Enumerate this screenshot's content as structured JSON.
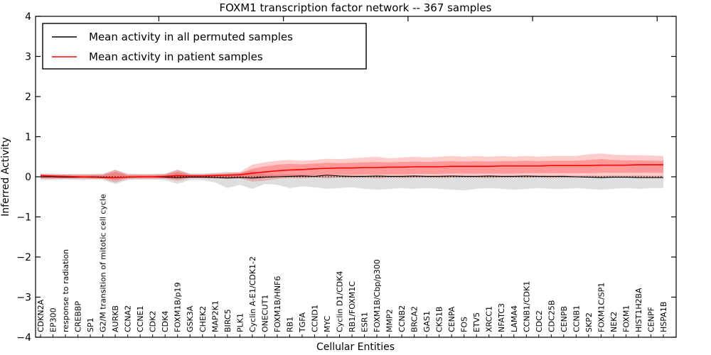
{
  "chart_data": {
    "type": "line",
    "title": "FOXM1 transcription factor network -- 367 samples",
    "xlabel": "Cellular Entities",
    "ylabel": "Inferred Activity",
    "ylim": [
      -4,
      4
    ],
    "ytick_values": [
      4,
      3,
      2,
      1,
      0,
      -1,
      -2,
      -3,
      -4
    ],
    "ytick_labels": [
      "4",
      "3",
      "2",
      "1",
      "0",
      "−1",
      "−2",
      "−3",
      "−4"
    ],
    "grid": false,
    "legend_position": "upper left",
    "legend": [
      {
        "label": "Mean activity in all permuted samples",
        "color": "#000000"
      },
      {
        "label": "Mean activity in patient samples",
        "color": "#ff0000"
      }
    ],
    "categories": [
      "CDKN2A",
      "EP300",
      "response to radiation",
      "CREBBP",
      "SP1",
      "G2/M transition of mitotic cell cycle",
      "AURKB",
      "CCNA2",
      "CCNE1",
      "CDK2",
      "CDK4",
      "FOXM1B/p19",
      "GSK3A",
      "CHEK2",
      "MAP2K1",
      "BIRC5",
      "PLK1",
      "Cyclin A-E1/CDK1-2",
      "ONECUT1",
      "FOXM1B/HNF6",
      "RB1",
      "TGFA",
      "CCND1",
      "MYC",
      "Cyclin D1/CDK4",
      "RB1/FOXM1C",
      "ESR1",
      "FOXM1B/Cbp/p300",
      "MMP2",
      "CCNB2",
      "BRCA2",
      "GAS1",
      "CKS1B",
      "CENPA",
      "FOS",
      "ETV5",
      "XRCC1",
      "NFATC3",
      "LAMA4",
      "CCNB1/CDK1",
      "CDC2",
      "CDC25B",
      "CENPB",
      "CCNB1",
      "SKP2",
      "FOXM1C/SP1",
      "NEK2",
      "FOXM1",
      "HIST1H2BA",
      "CENPF",
      "HSPA1B"
    ],
    "series": [
      {
        "name": "Mean activity in all permuted samples",
        "color": "#000000",
        "values": [
          0.0,
          0.0,
          -0.01,
          -0.01,
          0.0,
          -0.01,
          -0.02,
          -0.01,
          0.0,
          0.0,
          -0.01,
          -0.02,
          -0.01,
          -0.01,
          -0.02,
          -0.03,
          -0.02,
          -0.03,
          -0.01,
          0.0,
          0.01,
          0.02,
          0.01,
          0.04,
          0.02,
          0.01,
          0.01,
          0.02,
          0.01,
          0.01,
          0.02,
          0.01,
          0.01,
          0.02,
          0.01,
          0.01,
          0.02,
          0.01,
          0.01,
          0.02,
          0.01,
          0.01,
          0.01,
          0.0,
          -0.01,
          -0.02,
          -0.01,
          -0.01,
          -0.02,
          -0.02,
          -0.02
        ]
      },
      {
        "name": "Mean activity in patient samples",
        "color": "#ff0000",
        "values": [
          0.03,
          0.02,
          0.01,
          0.0,
          -0.01,
          -0.02,
          -0.02,
          -0.01,
          0.0,
          0.0,
          0.01,
          0.03,
          0.02,
          0.02,
          0.03,
          0.04,
          0.05,
          0.09,
          0.12,
          0.15,
          0.17,
          0.18,
          0.2,
          0.21,
          0.22,
          0.22,
          0.23,
          0.23,
          0.24,
          0.24,
          0.25,
          0.25,
          0.25,
          0.26,
          0.26,
          0.26,
          0.26,
          0.27,
          0.27,
          0.27,
          0.27,
          0.28,
          0.28,
          0.28,
          0.28,
          0.29,
          0.29,
          0.29,
          0.3,
          0.3,
          0.3
        ]
      }
    ],
    "zero_line": 0,
    "bands": [
      {
        "name": "permuted-samples-range",
        "color": "#000000",
        "opacity": 0.13,
        "upper": [
          0.08,
          0.08,
          0.07,
          0.07,
          0.07,
          0.08,
          0.17,
          0.08,
          0.07,
          0.07,
          0.08,
          0.17,
          0.08,
          0.08,
          0.1,
          0.12,
          0.1,
          0.15,
          0.06,
          0.05,
          0.06,
          0.05,
          0.04,
          0.05,
          0.04,
          0.04,
          0.04,
          0.04,
          0.03,
          0.04,
          0.04,
          0.03,
          0.04,
          0.03,
          0.04,
          0.03,
          0.04,
          0.03,
          0.04,
          0.03,
          0.04,
          0.03,
          0.04,
          0.03,
          0.04,
          0.03,
          0.04,
          0.03,
          0.04,
          0.03,
          0.03
        ],
        "lower": [
          -0.08,
          -0.08,
          -0.07,
          -0.07,
          -0.07,
          -0.08,
          -0.18,
          -0.08,
          -0.07,
          -0.07,
          -0.08,
          -0.18,
          -0.08,
          -0.08,
          -0.14,
          -0.28,
          -0.2,
          -0.3,
          -0.18,
          -0.2,
          -0.28,
          -0.24,
          -0.26,
          -0.3,
          -0.28,
          -0.26,
          -0.3,
          -0.32,
          -0.3,
          -0.28,
          -0.3,
          -0.28,
          -0.3,
          -0.32,
          -0.34,
          -0.3,
          -0.28,
          -0.3,
          -0.32,
          -0.3,
          -0.28,
          -0.3,
          -0.3,
          -0.28,
          -0.3,
          -0.32,
          -0.3,
          -0.28,
          -0.3,
          -0.28,
          -0.28
        ]
      },
      {
        "name": "patient-samples-outer-range",
        "color": "#ff0000",
        "opacity": 0.2,
        "upper": [
          0.07,
          0.06,
          0.06,
          0.06,
          0.06,
          0.06,
          0.18,
          0.06,
          0.06,
          0.06,
          0.07,
          0.18,
          0.07,
          0.07,
          0.08,
          0.1,
          0.12,
          0.3,
          0.36,
          0.4,
          0.42,
          0.4,
          0.42,
          0.45,
          0.44,
          0.46,
          0.48,
          0.5,
          0.46,
          0.48,
          0.5,
          0.48,
          0.5,
          0.52,
          0.5,
          0.52,
          0.5,
          0.52,
          0.5,
          0.52,
          0.5,
          0.52,
          0.52,
          0.52,
          0.56,
          0.58,
          0.55,
          0.54,
          0.54,
          0.53,
          0.52
        ],
        "lower": [
          -0.05,
          -0.05,
          -0.05,
          -0.05,
          -0.05,
          -0.05,
          -0.14,
          -0.05,
          -0.05,
          -0.05,
          -0.05,
          -0.1,
          -0.04,
          -0.04,
          -0.04,
          -0.05,
          -0.04,
          -0.12,
          -0.1,
          -0.05,
          -0.03,
          -0.04,
          -0.02,
          -0.04,
          -0.02,
          -0.03,
          -0.02,
          -0.04,
          -0.02,
          -0.03,
          -0.02,
          -0.02,
          -0.03,
          -0.02,
          -0.02,
          -0.02,
          -0.03,
          -0.02,
          -0.02,
          -0.02,
          -0.02,
          -0.03,
          -0.02,
          -0.02,
          -0.02,
          -0.02,
          -0.02,
          -0.02,
          -0.02,
          -0.02,
          -0.02
        ]
      },
      {
        "name": "patient-samples-inner-range",
        "color": "#ff0000",
        "opacity": 0.25,
        "upper": [
          0.05,
          0.04,
          0.04,
          0.04,
          0.04,
          0.04,
          0.12,
          0.04,
          0.04,
          0.04,
          0.05,
          0.12,
          0.05,
          0.05,
          0.06,
          0.07,
          0.09,
          0.2,
          0.26,
          0.3,
          0.32,
          0.31,
          0.33,
          0.35,
          0.34,
          0.35,
          0.36,
          0.37,
          0.36,
          0.37,
          0.38,
          0.37,
          0.38,
          0.39,
          0.38,
          0.39,
          0.38,
          0.39,
          0.39,
          0.4,
          0.39,
          0.4,
          0.4,
          0.4,
          0.42,
          0.44,
          0.42,
          0.41,
          0.41,
          0.4,
          0.4
        ],
        "lower": [
          -0.03,
          -0.03,
          -0.03,
          -0.03,
          -0.03,
          -0.03,
          -0.08,
          -0.03,
          -0.03,
          -0.03,
          -0.03,
          -0.06,
          -0.02,
          -0.02,
          -0.02,
          -0.02,
          -0.01,
          -0.05,
          -0.03,
          0.0,
          0.02,
          0.02,
          0.04,
          0.03,
          0.05,
          0.05,
          0.06,
          0.05,
          0.06,
          0.06,
          0.07,
          0.07,
          0.07,
          0.08,
          0.08,
          0.08,
          0.08,
          0.08,
          0.08,
          0.09,
          0.09,
          0.09,
          0.09,
          0.09,
          0.09,
          0.1,
          0.1,
          0.1,
          0.1,
          0.1,
          0.1
        ]
      }
    ]
  }
}
